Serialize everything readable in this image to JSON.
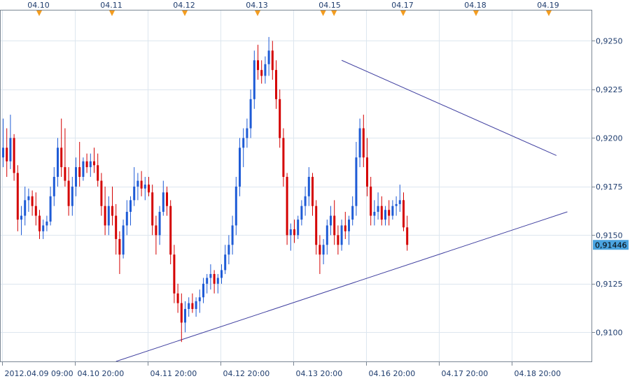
{
  "chart_data": {
    "type": "candlestick",
    "title": "",
    "current_price": "0,91446",
    "colors": {
      "up": "#1e5bd6",
      "down": "#d40000",
      "grid": "#dde6ef",
      "frame": "#7b8794",
      "trendline": "#4040a0",
      "marker": "#f39c1f",
      "price_box": "#4aa3df"
    },
    "y_axis": {
      "ylim": [
        0.9085,
        0.9266
      ],
      "ticks": [
        "0,9250",
        "0,9225",
        "0,9200",
        "0,9175",
        "0,9150",
        "0,9125",
        "0,9100"
      ],
      "tick_values": [
        0.925,
        0.9225,
        0.92,
        0.9175,
        0.915,
        0.9125,
        0.91
      ]
    },
    "x_axis": {
      "bottom_ticks": [
        "2012.04.09 09:00",
        "04.10 20:00",
        "04.11 20:00",
        "04.12 20:00",
        "04.13 20:00",
        "04.16 20:00",
        "04.17 20:00",
        "04.18 20:00"
      ],
      "bottom_tick_bars": [
        0,
        20,
        40,
        60,
        80,
        100,
        120,
        140
      ],
      "top_ticks": [
        "04.10",
        "04.11",
        "04.12",
        "04.13",
        "04.15",
        "04.17",
        "04.18",
        "04.19"
      ],
      "top_tick_bars": [
        10,
        30,
        50,
        70,
        90,
        110,
        130,
        150
      ],
      "marker_bars": [
        10,
        30,
        50,
        70,
        88,
        91,
        110,
        130,
        150
      ]
    },
    "trendlines": [
      {
        "from": {
          "bar": 31,
          "price": 0.9085
        },
        "to": {
          "bar": 155,
          "price": 0.9162
        }
      },
      {
        "from": {
          "bar": 93,
          "price": 0.924
        },
        "to": {
          "bar": 152,
          "price": 0.9191
        }
      }
    ],
    "ohlc": [
      [
        0.919,
        0.921,
        0.9185,
        0.9195
      ],
      [
        0.9195,
        0.9205,
        0.918,
        0.9188
      ],
      [
        0.9188,
        0.9212,
        0.9184,
        0.92
      ],
      [
        0.92,
        0.9202,
        0.9178,
        0.9182
      ],
      [
        0.9182,
        0.9186,
        0.9152,
        0.9158
      ],
      [
        0.9158,
        0.9165,
        0.915,
        0.916
      ],
      [
        0.916,
        0.9175,
        0.9155,
        0.9168
      ],
      [
        0.9168,
        0.9174,
        0.9162,
        0.917
      ],
      [
        0.917,
        0.9173,
        0.916,
        0.9165
      ],
      [
        0.9165,
        0.9172,
        0.9155,
        0.916
      ],
      [
        0.916,
        0.9163,
        0.9148,
        0.9152
      ],
      [
        0.9152,
        0.9158,
        0.9148,
        0.9155
      ],
      [
        0.9155,
        0.916,
        0.9152,
        0.9157
      ],
      [
        0.9157,
        0.9175,
        0.9155,
        0.917
      ],
      [
        0.917,
        0.9185,
        0.9165,
        0.918
      ],
      [
        0.918,
        0.92,
        0.9175,
        0.9195
      ],
      [
        0.9195,
        0.921,
        0.918,
        0.9185
      ],
      [
        0.9185,
        0.9205,
        0.9175,
        0.9178
      ],
      [
        0.9178,
        0.9185,
        0.916,
        0.9165
      ],
      [
        0.9165,
        0.918,
        0.916,
        0.9175
      ],
      [
        0.9175,
        0.919,
        0.917,
        0.9185
      ],
      [
        0.9185,
        0.9198,
        0.9175,
        0.918
      ],
      [
        0.918,
        0.919,
        0.9178,
        0.9188
      ],
      [
        0.9188,
        0.9192,
        0.9182,
        0.9185
      ],
      [
        0.9185,
        0.9192,
        0.918,
        0.9188
      ],
      [
        0.9188,
        0.9195,
        0.9182,
        0.9186
      ],
      [
        0.9186,
        0.9192,
        0.9175,
        0.9178
      ],
      [
        0.9178,
        0.9182,
        0.916,
        0.9165
      ],
      [
        0.9165,
        0.9175,
        0.915,
        0.9155
      ],
      [
        0.9155,
        0.917,
        0.915,
        0.9165
      ],
      [
        0.9165,
        0.9175,
        0.9155,
        0.916
      ],
      [
        0.916,
        0.9166,
        0.914,
        0.9148
      ],
      [
        0.9148,
        0.9152,
        0.913,
        0.914
      ],
      [
        0.914,
        0.9158,
        0.9138,
        0.9155
      ],
      [
        0.9155,
        0.9168,
        0.915,
        0.9162
      ],
      [
        0.9162,
        0.917,
        0.9155,
        0.9168
      ],
      [
        0.9168,
        0.9185,
        0.9165,
        0.9175
      ],
      [
        0.9175,
        0.9182,
        0.9168,
        0.9178
      ],
      [
        0.9178,
        0.9183,
        0.917,
        0.9174
      ],
      [
        0.9174,
        0.918,
        0.9168,
        0.9176
      ],
      [
        0.9176,
        0.918,
        0.917,
        0.9172
      ],
      [
        0.9172,
        0.9176,
        0.915,
        0.9155
      ],
      [
        0.9155,
        0.916,
        0.914,
        0.915
      ],
      [
        0.915,
        0.9165,
        0.9145,
        0.9162
      ],
      [
        0.9162,
        0.9178,
        0.916,
        0.9172
      ],
      [
        0.9172,
        0.9175,
        0.916,
        0.9165
      ],
      [
        0.9165,
        0.9168,
        0.9135,
        0.914
      ],
      [
        0.914,
        0.9145,
        0.9115,
        0.912
      ],
      [
        0.912,
        0.9125,
        0.911,
        0.9115
      ],
      [
        0.9115,
        0.912,
        0.9095,
        0.9105
      ],
      [
        0.9105,
        0.9116,
        0.91,
        0.9112
      ],
      [
        0.9112,
        0.9118,
        0.9108,
        0.9115
      ],
      [
        0.9115,
        0.912,
        0.911,
        0.9112
      ],
      [
        0.9112,
        0.9118,
        0.9108,
        0.9116
      ],
      [
        0.9116,
        0.9122,
        0.911,
        0.9118
      ],
      [
        0.9118,
        0.9128,
        0.9115,
        0.9125
      ],
      [
        0.9125,
        0.913,
        0.912,
        0.9128
      ],
      [
        0.9128,
        0.9135,
        0.9122,
        0.913
      ],
      [
        0.913,
        0.9132,
        0.912,
        0.9125
      ],
      [
        0.9125,
        0.913,
        0.912,
        0.9128
      ],
      [
        0.9128,
        0.9135,
        0.9125,
        0.9132
      ],
      [
        0.9132,
        0.9145,
        0.913,
        0.914
      ],
      [
        0.914,
        0.915,
        0.9135,
        0.9145
      ],
      [
        0.9145,
        0.916,
        0.914,
        0.9155
      ],
      [
        0.9155,
        0.918,
        0.915,
        0.9175
      ],
      [
        0.9175,
        0.92,
        0.917,
        0.9195
      ],
      [
        0.9195,
        0.9205,
        0.9185,
        0.92
      ],
      [
        0.92,
        0.921,
        0.9195,
        0.9205
      ],
      [
        0.9205,
        0.9225,
        0.92,
        0.922
      ],
      [
        0.922,
        0.9245,
        0.9215,
        0.924
      ],
      [
        0.924,
        0.9248,
        0.923,
        0.9235
      ],
      [
        0.9235,
        0.924,
        0.9228,
        0.9232
      ],
      [
        0.9232,
        0.9242,
        0.9228,
        0.9238
      ],
      [
        0.9238,
        0.9252,
        0.9232,
        0.9245
      ],
      [
        0.9245,
        0.925,
        0.923,
        0.9235
      ],
      [
        0.9235,
        0.924,
        0.9215,
        0.922
      ],
      [
        0.922,
        0.9225,
        0.9195,
        0.92
      ],
      [
        0.92,
        0.9205,
        0.9175,
        0.918
      ],
      [
        0.918,
        0.9182,
        0.9145,
        0.915
      ],
      [
        0.915,
        0.9156,
        0.9142,
        0.9153
      ],
      [
        0.9153,
        0.9158,
        0.9146,
        0.915
      ],
      [
        0.915,
        0.916,
        0.9148,
        0.9158
      ],
      [
        0.9158,
        0.9168,
        0.9155,
        0.9165
      ],
      [
        0.9165,
        0.9175,
        0.916,
        0.917
      ],
      [
        0.917,
        0.9185,
        0.9165,
        0.918
      ],
      [
        0.918,
        0.9182,
        0.916,
        0.9165
      ],
      [
        0.9165,
        0.9168,
        0.914,
        0.9145
      ],
      [
        0.9145,
        0.915,
        0.913,
        0.914
      ],
      [
        0.914,
        0.9148,
        0.9135,
        0.9145
      ],
      [
        0.9145,
        0.9158,
        0.914,
        0.9155
      ],
      [
        0.9155,
        0.9165,
        0.915,
        0.916
      ],
      [
        0.916,
        0.9168,
        0.9145,
        0.915
      ],
      [
        0.915,
        0.9155,
        0.914,
        0.9145
      ],
      [
        0.9145,
        0.9158,
        0.9142,
        0.9155
      ],
      [
        0.9155,
        0.9162,
        0.9148,
        0.9152
      ],
      [
        0.9152,
        0.916,
        0.9145,
        0.9158
      ],
      [
        0.9158,
        0.917,
        0.9155,
        0.9165
      ],
      [
        0.9165,
        0.9198,
        0.916,
        0.919
      ],
      [
        0.919,
        0.921,
        0.9185,
        0.9205
      ],
      [
        0.9205,
        0.9212,
        0.9185,
        0.919
      ],
      [
        0.919,
        0.92,
        0.917,
        0.9175
      ],
      [
        0.9175,
        0.918,
        0.9155,
        0.916
      ],
      [
        0.916,
        0.9168,
        0.9155,
        0.9162
      ],
      [
        0.9162,
        0.9172,
        0.9158,
        0.9165
      ],
      [
        0.9165,
        0.917,
        0.9155,
        0.9158
      ],
      [
        0.9158,
        0.9165,
        0.9155,
        0.9163
      ],
      [
        0.9163,
        0.9168,
        0.9155,
        0.916
      ],
      [
        0.916,
        0.9168,
        0.9158,
        0.9165
      ],
      [
        0.9165,
        0.917,
        0.916,
        0.9166
      ],
      [
        0.9166,
        0.9176,
        0.9162,
        0.9168
      ],
      [
        0.9168,
        0.9172,
        0.9152,
        0.9154
      ]
    ],
    "tail": [
      [
        0.9154,
        0.916,
        0.9142,
        0.9145
      ]
    ]
  }
}
